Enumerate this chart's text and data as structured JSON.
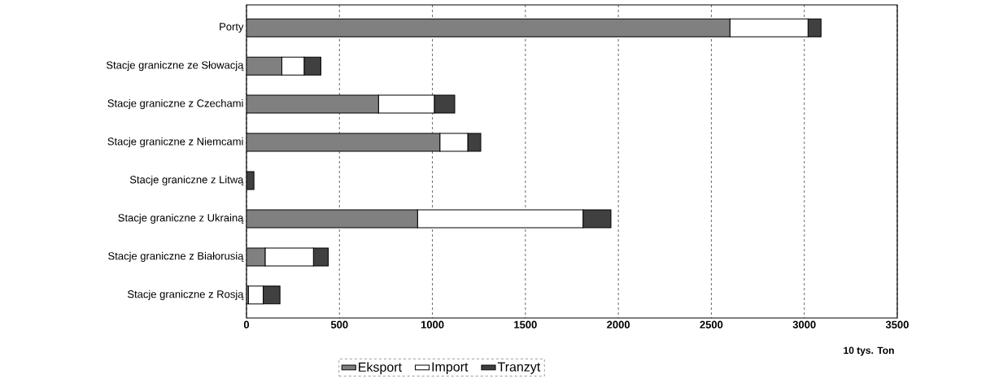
{
  "chart_data": {
    "type": "bar",
    "orientation": "horizontal",
    "stacked": true,
    "categories": [
      "Porty",
      "Stacje graniczne ze Słowacją",
      "Stacje graniczne z Czechami",
      "Stacje graniczne z Niemcami",
      "Stacje graniczne z Litwą",
      "Stacje graniczne z Ukrainą",
      "Stacje graniczne z Białorusią",
      "Stacje graniczne z Rosją"
    ],
    "series": [
      {
        "name": "Eksport",
        "color": "#808080",
        "values": [
          2600,
          190,
          710,
          1040,
          0,
          920,
          100,
          10
        ]
      },
      {
        "name": "Import",
        "color": "#ffffff",
        "values": [
          420,
          120,
          300,
          150,
          0,
          890,
          260,
          80
        ]
      },
      {
        "name": "Tranzyt",
        "color": "#404040",
        "values": [
          70,
          90,
          110,
          70,
          40,
          150,
          80,
          90
        ]
      }
    ],
    "xlim": [
      0,
      3500
    ],
    "xticks": [
      0,
      500,
      1000,
      1500,
      2000,
      2500,
      3000,
      3500
    ],
    "xlabel": "10 tys. Ton",
    "grid": "x",
    "legend": "bottom"
  }
}
